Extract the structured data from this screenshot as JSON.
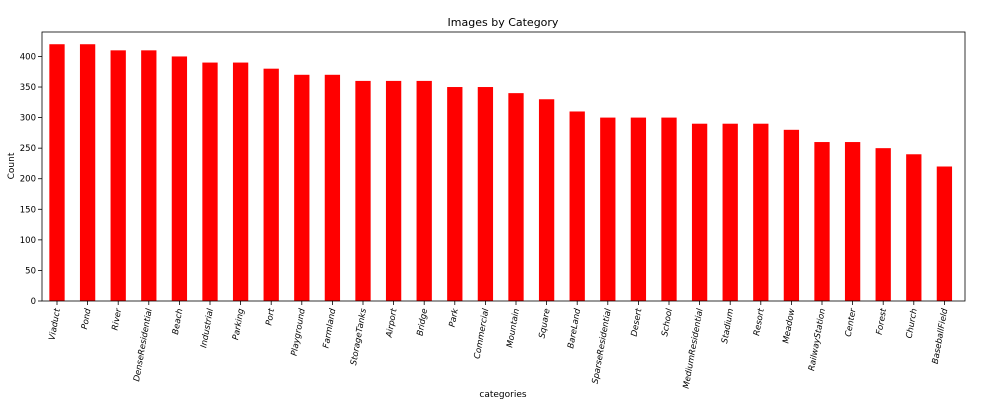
{
  "chart_data": {
    "type": "bar",
    "title": "Images by Category",
    "xlabel": "categories",
    "ylabel": "Count",
    "ylim": [
      0,
      440
    ],
    "yticks": [
      0,
      50,
      100,
      150,
      200,
      250,
      300,
      350,
      400
    ],
    "grid": false,
    "bar_color": "#ff0000",
    "categories": [
      "Viaduct",
      "Pond",
      "River",
      "DenseResidential",
      "Beach",
      "Industrial",
      "Parking",
      "Port",
      "Playground",
      "Farmland",
      "StorageTanks",
      "Airport",
      "Bridge",
      "Park",
      "Commercial",
      "Mountain",
      "Square",
      "BareLand",
      "SparseResidential",
      "Desert",
      "School",
      "MediumResidential",
      "Stadium",
      "Resort",
      "Meadow",
      "RailwayStation",
      "Center",
      "Forest",
      "Church",
      "BaseballField"
    ],
    "values": [
      420,
      420,
      410,
      410,
      400,
      390,
      390,
      380,
      370,
      370,
      360,
      360,
      360,
      350,
      350,
      340,
      330,
      310,
      300,
      300,
      300,
      290,
      290,
      290,
      280,
      260,
      260,
      250,
      240,
      220
    ]
  }
}
